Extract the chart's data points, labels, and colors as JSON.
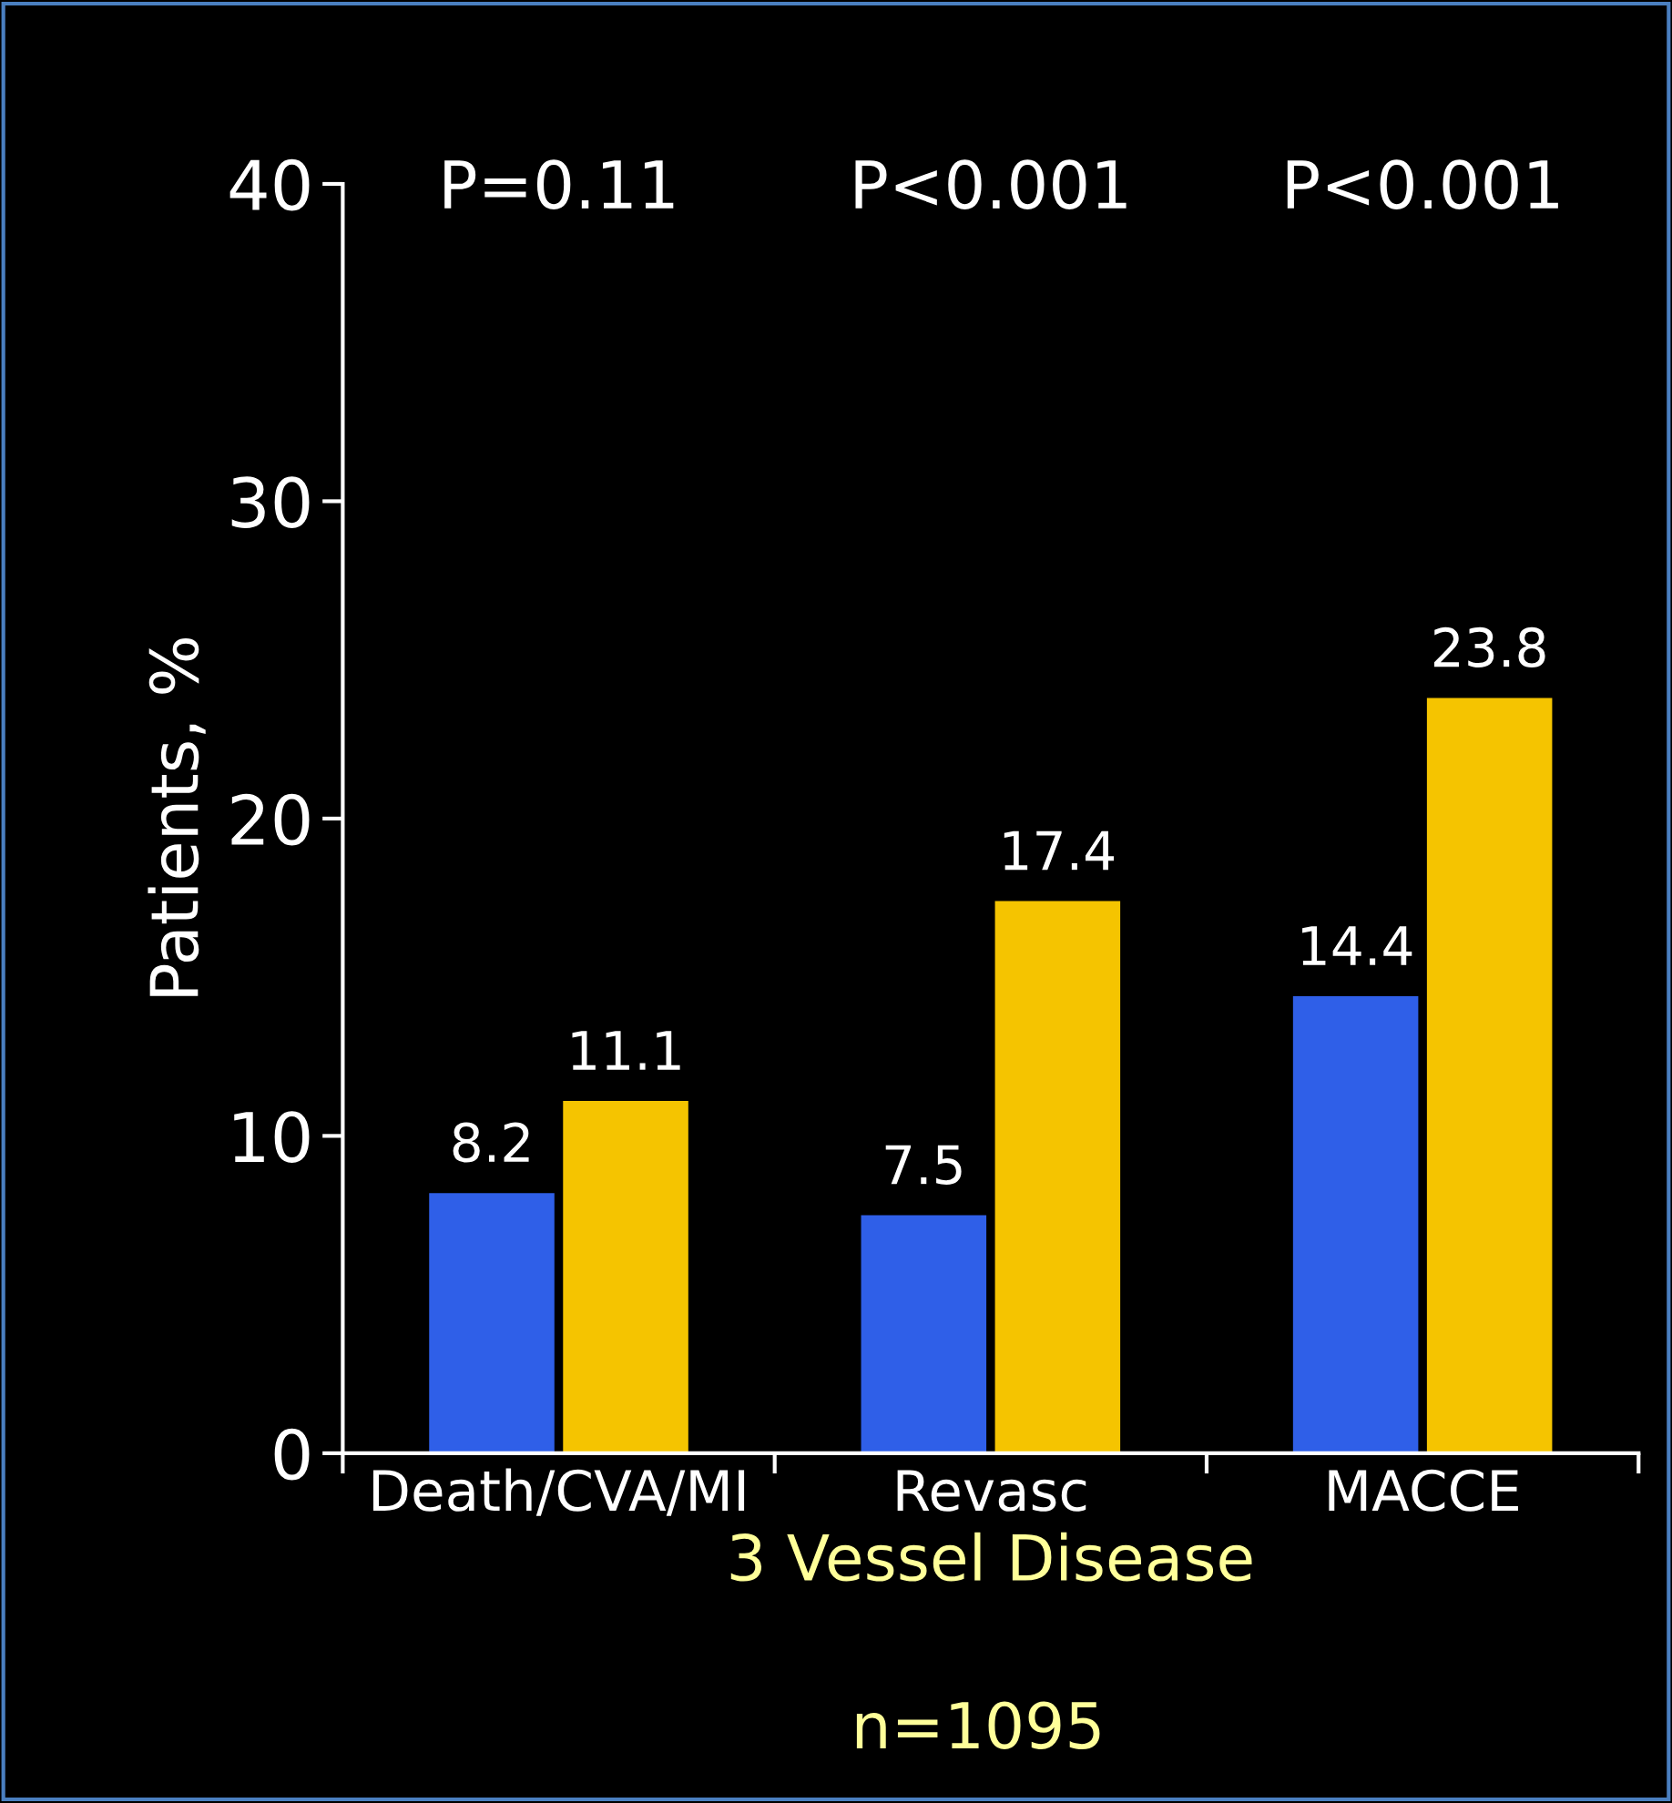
{
  "chart_data": {
    "type": "bar",
    "ylabel": "Patients, %",
    "xlabel": "3 Vessel Disease",
    "categories": [
      "Death/CVA/MI",
      "Revasc",
      "MACCE"
    ],
    "series": [
      {
        "color": "#2f5fe8",
        "values": [
          8.2,
          7.5,
          14.4
        ]
      },
      {
        "color": "#f5c400",
        "values": [
          11.1,
          17.4,
          23.8
        ]
      }
    ],
    "ylim": [
      0,
      40
    ],
    "yticks": [
      0,
      10,
      20,
      30,
      40
    ],
    "data_labels": true,
    "grid": false,
    "legend": false,
    "annotations": [
      "P=0.11",
      "P<0.001",
      "P<0.001",
      "n=1095"
    ]
  }
}
